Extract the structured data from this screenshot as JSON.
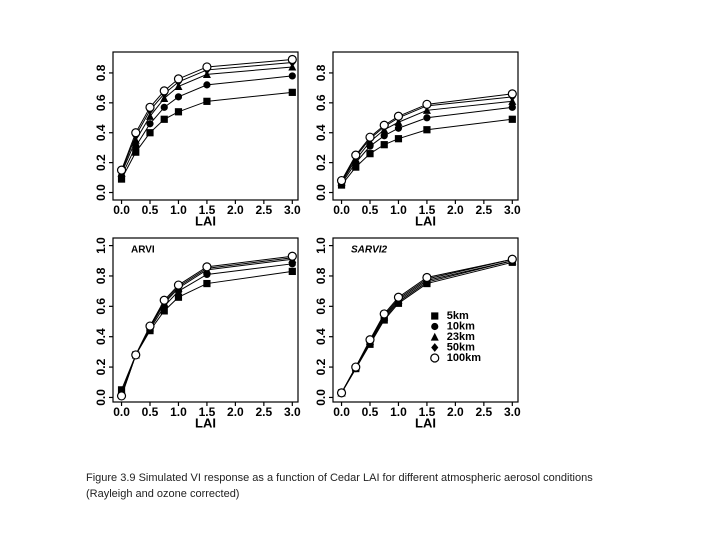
{
  "chart_data": [
    {
      "type": "line",
      "xlabel": "LAI",
      "x": [
        0,
        0.25,
        0.5,
        0.75,
        1.0,
        1.5,
        3.0
      ],
      "xlim": [
        -0.15,
        3.1
      ],
      "ylim": [
        -0.05,
        0.94
      ],
      "xticks": [
        {
          "value": 0,
          "label": "0.0"
        },
        0.5,
        {
          "value": 1,
          "label": "1.0"
        },
        1.5,
        {
          "value": 2,
          "label": "2.0"
        },
        2.5,
        {
          "value": 3,
          "label": "3.0"
        }
      ],
      "yticks": [
        {
          "value": 0,
          "label": "0.0"
        },
        0.2,
        0.4,
        0.6,
        0.8
      ],
      "series": [
        {
          "color": "#000000",
          "marker": "square",
          "values": [
            0.09,
            0.27,
            0.4,
            0.49,
            0.54,
            0.61,
            0.67
          ]
        },
        {
          "color": "#000000",
          "marker": "circle",
          "values": [
            0.11,
            0.31,
            0.46,
            0.57,
            0.64,
            0.72,
            0.78
          ]
        },
        {
          "color": "#000000",
          "marker": "triangle",
          "values": [
            0.13,
            0.35,
            0.51,
            0.63,
            0.71,
            0.79,
            0.84
          ]
        },
        {
          "color": "#000000",
          "marker": "diamond",
          "values": [
            0.14,
            0.38,
            0.55,
            0.66,
            0.74,
            0.82,
            0.87
          ]
        },
        {
          "color": "#000000",
          "marker": "open-circle",
          "values": [
            0.15,
            0.4,
            0.57,
            0.68,
            0.76,
            0.84,
            0.89
          ]
        }
      ]
    },
    {
      "type": "line",
      "xlabel": "LAI",
      "x": [
        0,
        0.25,
        0.5,
        0.75,
        1.0,
        1.5,
        3.0
      ],
      "xlim": [
        -0.15,
        3.1
      ],
      "ylim": [
        -0.05,
        0.94
      ],
      "xticks": [
        {
          "value": 0,
          "label": "0.0"
        },
        0.5,
        {
          "value": 1,
          "label": "1.0"
        },
        1.5,
        {
          "value": 2,
          "label": "2.0"
        },
        2.5,
        {
          "value": 3,
          "label": "3.0"
        }
      ],
      "yticks": [
        {
          "value": 0,
          "label": "0.0"
        },
        0.2,
        0.4,
        0.6,
        0.8
      ],
      "series": [
        {
          "color": "#000000",
          "marker": "square",
          "values": [
            0.05,
            0.17,
            0.26,
            0.32,
            0.36,
            0.42,
            0.49
          ]
        },
        {
          "color": "#000000",
          "marker": "circle",
          "values": [
            0.06,
            0.2,
            0.31,
            0.38,
            0.43,
            0.5,
            0.57
          ]
        },
        {
          "color": "#000000",
          "marker": "triangle",
          "values": [
            0.07,
            0.22,
            0.34,
            0.42,
            0.47,
            0.55,
            0.61
          ]
        },
        {
          "color": "#000000",
          "marker": "diamond",
          "values": [
            0.07,
            0.24,
            0.36,
            0.44,
            0.5,
            0.58,
            0.64
          ]
        },
        {
          "color": "#000000",
          "marker": "open-circle",
          "values": [
            0.08,
            0.25,
            0.37,
            0.45,
            0.51,
            0.59,
            0.66
          ]
        }
      ]
    },
    {
      "type": "line",
      "title": "ARVI",
      "xlabel": "LAI",
      "x": [
        0,
        0.25,
        0.5,
        0.75,
        1.0,
        1.5,
        3.0
      ],
      "xlim": [
        -0.15,
        3.1
      ],
      "ylim": [
        -0.03,
        1.05
      ],
      "xticks": [
        {
          "value": 0,
          "label": "0.0"
        },
        0.5,
        {
          "value": 1,
          "label": "1.0"
        },
        1.5,
        {
          "value": 2,
          "label": "2.0"
        },
        2.5,
        {
          "value": 3,
          "label": "3.0"
        }
      ],
      "yticks": [
        {
          "value": 0,
          "label": "0.0"
        },
        0.2,
        0.4,
        0.6,
        0.8,
        {
          "value": 1,
          "label": "1.0"
        }
      ],
      "series": [
        {
          "color": "#000000",
          "marker": "square",
          "values": [
            0.05,
            0.28,
            0.44,
            0.57,
            0.66,
            0.75,
            0.83
          ]
        },
        {
          "color": "#000000",
          "marker": "circle",
          "values": [
            0.03,
            0.28,
            0.45,
            0.6,
            0.7,
            0.81,
            0.88
          ]
        },
        {
          "color": "#000000",
          "marker": "triangle",
          "values": [
            0.02,
            0.28,
            0.46,
            0.62,
            0.72,
            0.84,
            0.91
          ]
        },
        {
          "color": "#000000",
          "marker": "diamond",
          "values": [
            0.01,
            0.28,
            0.47,
            0.63,
            0.73,
            0.85,
            0.92
          ]
        },
        {
          "color": "#000000",
          "marker": "open-circle",
          "values": [
            0.01,
            0.28,
            0.47,
            0.64,
            0.74,
            0.86,
            0.93
          ]
        }
      ]
    },
    {
      "type": "line",
      "title": "SARVI2",
      "xlabel": "LAI",
      "legend": "center-right",
      "x": [
        0,
        0.25,
        0.5,
        0.75,
        1.0,
        1.5,
        3.0
      ],
      "xlim": [
        -0.15,
        3.1
      ],
      "ylim": [
        -0.03,
        1.05
      ],
      "xticks": [
        {
          "value": 0,
          "label": "0.0"
        },
        0.5,
        {
          "value": 1,
          "label": "1.0"
        },
        1.5,
        {
          "value": 2,
          "label": "2.0"
        },
        2.5,
        {
          "value": 3,
          "label": "3.0"
        }
      ],
      "yticks": [
        {
          "value": 0,
          "label": "0.0"
        },
        0.2,
        0.4,
        0.6,
        0.8,
        {
          "value": 1,
          "label": "1.0"
        }
      ],
      "series": [
        {
          "name": "5km",
          "color": "#000000",
          "marker": "square",
          "values": [
            0.03,
            0.19,
            0.35,
            0.51,
            0.62,
            0.75,
            0.89
          ]
        },
        {
          "name": "10km",
          "color": "#000000",
          "marker": "circle",
          "values": [
            0.03,
            0.19,
            0.36,
            0.52,
            0.63,
            0.76,
            0.9
          ]
        },
        {
          "name": "23km",
          "color": "#000000",
          "marker": "triangle",
          "values": [
            0.03,
            0.2,
            0.37,
            0.53,
            0.64,
            0.77,
            0.9
          ]
        },
        {
          "name": "50km",
          "color": "#000000",
          "marker": "diamond",
          "values": [
            0.03,
            0.2,
            0.37,
            0.54,
            0.65,
            0.78,
            0.91
          ]
        },
        {
          "name": "100km",
          "color": "#000000",
          "marker": "open-circle",
          "values": [
            0.03,
            0.2,
            0.38,
            0.55,
            0.66,
            0.79,
            0.91
          ]
        }
      ]
    }
  ],
  "caption": [
    "Figure 3.9 Simulated VI response as a function of Cedar LAI for different atmospheric aerosol conditions",
    "(Rayleigh and ozone corrected)"
  ]
}
